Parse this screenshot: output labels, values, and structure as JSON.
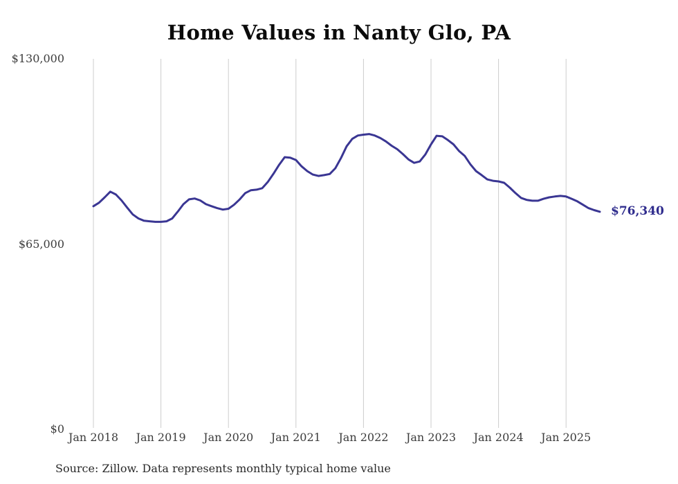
{
  "chart_data": {
    "type": "line",
    "title": "Home Values in Nanty Glo, PA",
    "ylabel": "",
    "xlabel": "",
    "ylim": [
      0,
      130000
    ],
    "grid": "vertical-only",
    "legend": "none",
    "line_color": "#3a3693",
    "gridline_color": "#cccccc",
    "end_label": "$76,340",
    "end_value": 76340,
    "yticks": [
      {
        "label": "$130,000",
        "value": 130000
      },
      {
        "label": "$65,000",
        "value": 65000
      },
      {
        "label": "$0",
        "value": 0
      }
    ],
    "xticks": [
      "Jan 2018",
      "Jan 2019",
      "Jan 2020",
      "Jan 2021",
      "Jan 2022",
      "Jan 2023",
      "Jan 2024",
      "Jan 2025"
    ],
    "series_name": "Monthly typical home value",
    "months": [
      "Jan 2018",
      "Feb 2018",
      "Mar 2018",
      "Apr 2018",
      "May 2018",
      "Jun 2018",
      "Jul 2018",
      "Aug 2018",
      "Sep 2018",
      "Oct 2018",
      "Nov 2018",
      "Dec 2018",
      "Jan 2019",
      "Feb 2019",
      "Mar 2019",
      "Apr 2019",
      "May 2019",
      "Jun 2019",
      "Jul 2019",
      "Aug 2019",
      "Sep 2019",
      "Oct 2019",
      "Nov 2019",
      "Dec 2019",
      "Jan 2020",
      "Feb 2020",
      "Mar 2020",
      "Apr 2020",
      "May 2020",
      "Jun 2020",
      "Jul 2020",
      "Aug 2020",
      "Sep 2020",
      "Oct 2020",
      "Nov 2020",
      "Dec 2020",
      "Jan 2021",
      "Feb 2021",
      "Mar 2021",
      "Apr 2021",
      "May 2021",
      "Jun 2021",
      "Jul 2021",
      "Aug 2021",
      "Sep 2021",
      "Oct 2021",
      "Nov 2021",
      "Dec 2021",
      "Jan 2022",
      "Feb 2022",
      "Mar 2022",
      "Apr 2022",
      "May 2022",
      "Jun 2022",
      "Jul 2022",
      "Aug 2022",
      "Sep 2022",
      "Oct 2022",
      "Nov 2022",
      "Dec 2022",
      "Jan 2023",
      "Feb 2023",
      "Mar 2023",
      "Apr 2023",
      "May 2023",
      "Jun 2023",
      "Jul 2023",
      "Aug 2023",
      "Sep 2023",
      "Oct 2023",
      "Nov 2023",
      "Dec 2023",
      "Jan 2024",
      "Feb 2024",
      "Mar 2024",
      "Apr 2024",
      "May 2024",
      "Jun 2024",
      "Jul 2024",
      "Aug 2024",
      "Sep 2024",
      "Oct 2024",
      "Nov 2024",
      "Dec 2024",
      "Jan 2025",
      "Feb 2025",
      "Mar 2025",
      "Apr 2025",
      "May 2025",
      "Jun 2025",
      "Jul 2025"
    ],
    "values": [
      78300,
      79500,
      81400,
      83400,
      82400,
      80300,
      77800,
      75400,
      74000,
      73200,
      73000,
      72800,
      72800,
      73000,
      74000,
      76400,
      79000,
      80700,
      81000,
      80300,
      79000,
      78300,
      77600,
      77100,
      77400,
      78800,
      80700,
      82900,
      83900,
      84100,
      84600,
      86800,
      89700,
      92800,
      95500,
      95300,
      94500,
      92300,
      90600,
      89400,
      88900,
      89200,
      89600,
      91600,
      95200,
      99300,
      101900,
      103100,
      103400,
      103600,
      103100,
      102200,
      101000,
      99500,
      98300,
      96600,
      94700,
      93500,
      94000,
      96500,
      100000,
      103000,
      102800,
      101500,
      100000,
      97600,
      95900,
      93000,
      90600,
      89200,
      87700,
      87200,
      87000,
      86500,
      84800,
      82900,
      81200,
      80500,
      80200,
      80200,
      80900,
      81400,
      81700,
      81900,
      81700,
      80900,
      80000,
      78800,
      77600,
      76900,
      76340
    ]
  },
  "footer": {
    "source": "Source: Zillow. Data represents monthly typical home value"
  }
}
